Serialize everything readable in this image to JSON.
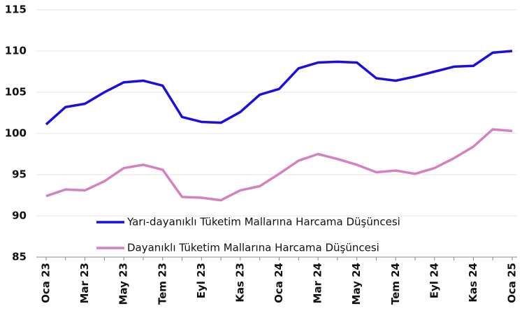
{
  "chart_data": {
    "type": "line",
    "categories": [
      "Oca 23",
      null,
      "Mar 23",
      null,
      "May 23",
      null,
      "Tem 23",
      null,
      "Eyl 23",
      null,
      "Kas 23",
      null,
      "Oca 24",
      null,
      "Mar 24",
      null,
      "May 24",
      null,
      "Tem 24",
      null,
      "Eyl 24",
      null,
      "Kas 24",
      null,
      "Oca 25"
    ],
    "series": [
      {
        "name": "Yarı-dayanıklı Tüketim Mallarına Harcama Düşüncesi",
        "color": "#1a0fe0",
        "values": [
          101.1,
          103.2,
          103.6,
          105.0,
          106.2,
          106.4,
          105.8,
          102.0,
          101.4,
          101.3,
          102.6,
          104.7,
          105.4,
          107.9,
          108.6,
          108.7,
          108.6,
          106.7,
          106.4,
          106.9,
          107.5,
          108.1,
          108.2,
          109.8,
          110.0
        ]
      },
      {
        "name": "Dayanıklı Tüketim Mallarına Harcama Düşüncesi",
        "color": "#d580bf",
        "values": [
          92.4,
          93.2,
          93.1,
          94.2,
          95.8,
          96.2,
          95.6,
          92.3,
          92.2,
          91.9,
          93.1,
          93.6,
          95.1,
          96.7,
          97.5,
          96.9,
          96.2,
          95.3,
          95.5,
          95.1,
          95.8,
          97.0,
          98.4,
          100.5,
          100.3
        ]
      }
    ],
    "ylim": [
      85,
      115
    ],
    "yticks": [
      85,
      90,
      95,
      100,
      105,
      110,
      115
    ],
    "grid": true
  }
}
